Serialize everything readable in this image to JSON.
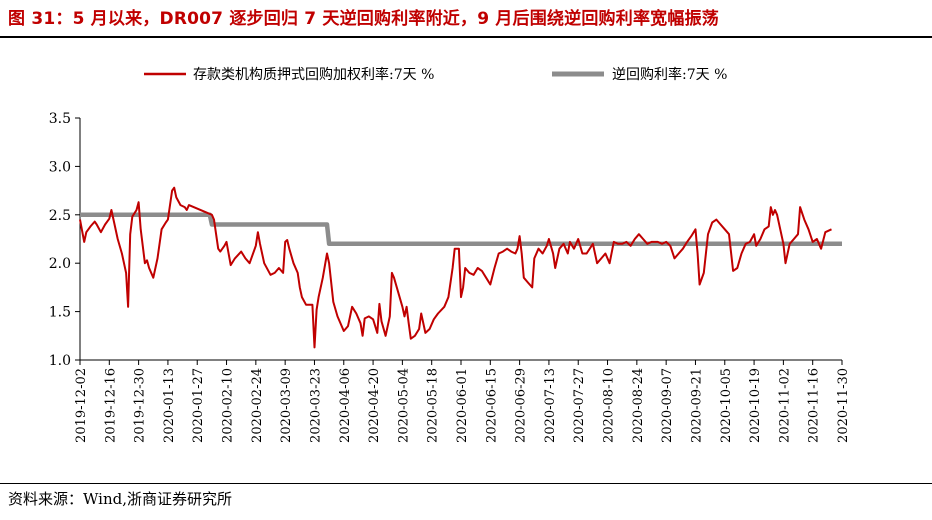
{
  "title": "图 31：5 月以来，DR007 逐步回归 7 天逆回购利率附近，9 月后围绕逆回购利率宽幅振荡",
  "source": "资料来源：Wind,浙商证券研究所",
  "colors": {
    "title": "#c00000",
    "dr007": "#c00000",
    "reverse_repo": "#8c8c8c",
    "axis": "#000000"
  },
  "chart_data": {
    "type": "line",
    "legend_position": "top",
    "grid": false,
    "ylim": [
      1.0,
      3.5
    ],
    "yticks": [
      "1.0",
      "1.5",
      "2.0",
      "2.5",
      "3.0",
      "3.5"
    ],
    "xlim": [
      "2019-12-02",
      "2020-11-30"
    ],
    "xticks": [
      "2019-12-02",
      "2019-12-16",
      "2019-12-30",
      "2020-01-13",
      "2020-01-27",
      "2020-02-10",
      "2020-02-24",
      "2020-03-09",
      "2020-03-23",
      "2020-04-06",
      "2020-04-20",
      "2020-05-04",
      "2020-05-18",
      "2020-06-01",
      "2020-06-15",
      "2020-06-29",
      "2020-07-13",
      "2020-07-27",
      "2020-08-10",
      "2020-08-24",
      "2020-09-07",
      "2020-09-21",
      "2020-10-05",
      "2020-10-19",
      "2020-11-02",
      "2020-11-16",
      "2020-11-30"
    ],
    "series": [
      {
        "name": "存款类机构质押式回购加权利率:7天 %",
        "color": "#c00000",
        "points": [
          [
            "2019-12-02",
            2.45
          ],
          [
            "2019-12-04",
            2.22
          ],
          [
            "2019-12-05",
            2.32
          ],
          [
            "2019-12-07",
            2.38
          ],
          [
            "2019-12-09",
            2.43
          ],
          [
            "2019-12-10",
            2.4
          ],
          [
            "2019-12-12",
            2.32
          ],
          [
            "2019-12-14",
            2.4
          ],
          [
            "2019-12-16",
            2.46
          ],
          [
            "2019-12-17",
            2.55
          ],
          [
            "2019-12-18",
            2.45
          ],
          [
            "2019-12-20",
            2.25
          ],
          [
            "2019-12-22",
            2.1
          ],
          [
            "2019-12-24",
            1.9
          ],
          [
            "2019-12-25",
            1.55
          ],
          [
            "2019-12-26",
            2.3
          ],
          [
            "2019-12-27",
            2.48
          ],
          [
            "2019-12-29",
            2.55
          ],
          [
            "2019-12-30",
            2.63
          ],
          [
            "2019-12-31",
            2.35
          ],
          [
            "2020-01-02",
            2.0
          ],
          [
            "2020-01-03",
            2.03
          ],
          [
            "2020-01-04",
            1.95
          ],
          [
            "2020-01-06",
            1.85
          ],
          [
            "2020-01-08",
            2.05
          ],
          [
            "2020-01-10",
            2.35
          ],
          [
            "2020-01-12",
            2.42
          ],
          [
            "2020-01-13",
            2.45
          ],
          [
            "2020-01-14",
            2.6
          ],
          [
            "2020-01-15",
            2.75
          ],
          [
            "2020-01-16",
            2.78
          ],
          [
            "2020-01-17",
            2.68
          ],
          [
            "2020-01-19",
            2.6
          ],
          [
            "2020-01-21",
            2.58
          ],
          [
            "2020-01-22",
            2.55
          ],
          [
            "2020-01-23",
            2.6
          ],
          [
            "2020-02-03",
            2.5
          ],
          [
            "2020-02-04",
            2.45
          ],
          [
            "2020-02-05",
            2.3
          ],
          [
            "2020-02-06",
            2.15
          ],
          [
            "2020-02-07",
            2.12
          ],
          [
            "2020-02-09",
            2.18
          ],
          [
            "2020-02-10",
            2.22
          ],
          [
            "2020-02-11",
            2.1
          ],
          [
            "2020-02-12",
            1.98
          ],
          [
            "2020-02-14",
            2.05
          ],
          [
            "2020-02-17",
            2.12
          ],
          [
            "2020-02-19",
            2.05
          ],
          [
            "2020-02-21",
            2.0
          ],
          [
            "2020-02-24",
            2.18
          ],
          [
            "2020-02-25",
            2.32
          ],
          [
            "2020-02-26",
            2.2
          ],
          [
            "2020-02-28",
            2.0
          ],
          [
            "2020-03-02",
            1.88
          ],
          [
            "2020-03-04",
            1.9
          ],
          [
            "2020-03-06",
            1.95
          ],
          [
            "2020-03-08",
            1.9
          ],
          [
            "2020-03-09",
            2.22
          ],
          [
            "2020-03-10",
            2.24
          ],
          [
            "2020-03-11",
            2.15
          ],
          [
            "2020-03-13",
            2.0
          ],
          [
            "2020-03-15",
            1.9
          ],
          [
            "2020-03-16",
            1.75
          ],
          [
            "2020-03-17",
            1.65
          ],
          [
            "2020-03-19",
            1.57
          ],
          [
            "2020-03-22",
            1.57
          ],
          [
            "2020-03-23",
            1.13
          ],
          [
            "2020-03-24",
            1.52
          ],
          [
            "2020-03-25",
            1.65
          ],
          [
            "2020-03-27",
            1.85
          ],
          [
            "2020-03-29",
            2.1
          ],
          [
            "2020-03-30",
            2.0
          ],
          [
            "2020-04-01",
            1.6
          ],
          [
            "2020-04-03",
            1.45
          ],
          [
            "2020-04-06",
            1.3
          ],
          [
            "2020-04-08",
            1.35
          ],
          [
            "2020-04-10",
            1.55
          ],
          [
            "2020-04-12",
            1.48
          ],
          [
            "2020-04-14",
            1.38
          ],
          [
            "2020-04-15",
            1.25
          ],
          [
            "2020-04-16",
            1.43
          ],
          [
            "2020-04-18",
            1.45
          ],
          [
            "2020-04-20",
            1.42
          ],
          [
            "2020-04-22",
            1.28
          ],
          [
            "2020-04-23",
            1.58
          ],
          [
            "2020-04-24",
            1.4
          ],
          [
            "2020-04-26",
            1.25
          ],
          [
            "2020-04-27",
            1.35
          ],
          [
            "2020-04-28",
            1.45
          ],
          [
            "2020-04-29",
            1.9
          ],
          [
            "2020-04-30",
            1.85
          ],
          [
            "2020-05-04",
            1.55
          ],
          [
            "2020-05-05",
            1.45
          ],
          [
            "2020-05-06",
            1.55
          ],
          [
            "2020-05-07",
            1.38
          ],
          [
            "2020-05-08",
            1.22
          ],
          [
            "2020-05-10",
            1.25
          ],
          [
            "2020-05-12",
            1.32
          ],
          [
            "2020-05-13",
            1.48
          ],
          [
            "2020-05-14",
            1.38
          ],
          [
            "2020-05-15",
            1.28
          ],
          [
            "2020-05-17",
            1.32
          ],
          [
            "2020-05-19",
            1.42
          ],
          [
            "2020-05-21",
            1.48
          ],
          [
            "2020-05-24",
            1.55
          ],
          [
            "2020-05-26",
            1.65
          ],
          [
            "2020-05-28",
            1.95
          ],
          [
            "2020-05-29",
            2.15
          ],
          [
            "2020-05-31",
            2.15
          ],
          [
            "2020-06-01",
            1.65
          ],
          [
            "2020-06-02",
            1.75
          ],
          [
            "2020-06-03",
            1.95
          ],
          [
            "2020-06-05",
            1.9
          ],
          [
            "2020-06-07",
            1.88
          ],
          [
            "2020-06-09",
            1.95
          ],
          [
            "2020-06-11",
            1.92
          ],
          [
            "2020-06-13",
            1.85
          ],
          [
            "2020-06-15",
            1.78
          ],
          [
            "2020-06-17",
            1.95
          ],
          [
            "2020-06-19",
            2.1
          ],
          [
            "2020-06-21",
            2.12
          ],
          [
            "2020-06-23",
            2.15
          ],
          [
            "2020-06-25",
            2.12
          ],
          [
            "2020-06-27",
            2.1
          ],
          [
            "2020-06-28",
            2.15
          ],
          [
            "2020-06-29",
            2.28
          ],
          [
            "2020-06-30",
            2.1
          ],
          [
            "2020-07-01",
            1.85
          ],
          [
            "2020-07-03",
            1.8
          ],
          [
            "2020-07-05",
            1.75
          ],
          [
            "2020-07-06",
            2.05
          ],
          [
            "2020-07-08",
            2.15
          ],
          [
            "2020-07-10",
            2.1
          ],
          [
            "2020-07-12",
            2.18
          ],
          [
            "2020-07-13",
            2.25
          ],
          [
            "2020-07-15",
            2.1
          ],
          [
            "2020-07-16",
            1.95
          ],
          [
            "2020-07-18",
            2.15
          ],
          [
            "2020-07-20",
            2.2
          ],
          [
            "2020-07-22",
            2.1
          ],
          [
            "2020-07-23",
            2.22
          ],
          [
            "2020-07-25",
            2.15
          ],
          [
            "2020-07-27",
            2.25
          ],
          [
            "2020-07-29",
            2.1
          ],
          [
            "2020-07-31",
            2.1
          ],
          [
            "2020-08-03",
            2.2
          ],
          [
            "2020-08-05",
            2.0
          ],
          [
            "2020-08-07",
            2.05
          ],
          [
            "2020-08-09",
            2.1
          ],
          [
            "2020-08-11",
            2.0
          ],
          [
            "2020-08-13",
            2.22
          ],
          [
            "2020-08-15",
            2.2
          ],
          [
            "2020-08-17",
            2.2
          ],
          [
            "2020-08-19",
            2.22
          ],
          [
            "2020-08-21",
            2.18
          ],
          [
            "2020-08-23",
            2.25
          ],
          [
            "2020-08-25",
            2.3
          ],
          [
            "2020-08-27",
            2.25
          ],
          [
            "2020-08-29",
            2.2
          ],
          [
            "2020-08-31",
            2.22
          ],
          [
            "2020-09-03",
            2.22
          ],
          [
            "2020-09-05",
            2.2
          ],
          [
            "2020-09-07",
            2.22
          ],
          [
            "2020-09-09",
            2.18
          ],
          [
            "2020-09-11",
            2.05
          ],
          [
            "2020-09-13",
            2.1
          ],
          [
            "2020-09-15",
            2.15
          ],
          [
            "2020-09-17",
            2.22
          ],
          [
            "2020-09-19",
            2.28
          ],
          [
            "2020-09-21",
            2.35
          ],
          [
            "2020-09-22",
            2.1
          ],
          [
            "2020-09-23",
            1.78
          ],
          [
            "2020-09-25",
            1.9
          ],
          [
            "2020-09-27",
            2.3
          ],
          [
            "2020-09-29",
            2.42
          ],
          [
            "2020-10-01",
            2.45
          ],
          [
            "2020-10-03",
            2.4
          ],
          [
            "2020-10-05",
            2.35
          ],
          [
            "2020-10-07",
            2.3
          ],
          [
            "2020-10-09",
            1.92
          ],
          [
            "2020-10-11",
            1.95
          ],
          [
            "2020-10-13",
            2.1
          ],
          [
            "2020-10-15",
            2.2
          ],
          [
            "2020-10-17",
            2.22
          ],
          [
            "2020-10-19",
            2.3
          ],
          [
            "2020-10-20",
            2.18
          ],
          [
            "2020-10-22",
            2.25
          ],
          [
            "2020-10-24",
            2.35
          ],
          [
            "2020-10-26",
            2.38
          ],
          [
            "2020-10-27",
            2.58
          ],
          [
            "2020-10-28",
            2.5
          ],
          [
            "2020-10-29",
            2.55
          ],
          [
            "2020-10-30",
            2.5
          ],
          [
            "2020-11-02",
            2.2
          ],
          [
            "2020-11-03",
            2.0
          ],
          [
            "2020-11-05",
            2.2
          ],
          [
            "2020-11-07",
            2.25
          ],
          [
            "2020-11-09",
            2.3
          ],
          [
            "2020-11-10",
            2.58
          ],
          [
            "2020-11-12",
            2.45
          ],
          [
            "2020-11-14",
            2.35
          ],
          [
            "2020-11-16",
            2.22
          ],
          [
            "2020-11-18",
            2.25
          ],
          [
            "2020-11-20",
            2.15
          ],
          [
            "2020-11-22",
            2.32
          ],
          [
            "2020-11-25",
            2.35
          ]
        ]
      },
      {
        "name": "逆回购利率:7天 %",
        "color": "#8c8c8c",
        "points": [
          [
            "2019-12-02",
            2.5
          ],
          [
            "2020-02-02",
            2.5
          ],
          [
            "2020-02-03",
            2.4
          ],
          [
            "2020-03-29",
            2.4
          ],
          [
            "2020-03-30",
            2.2
          ],
          [
            "2020-11-30",
            2.2
          ]
        ]
      }
    ]
  }
}
